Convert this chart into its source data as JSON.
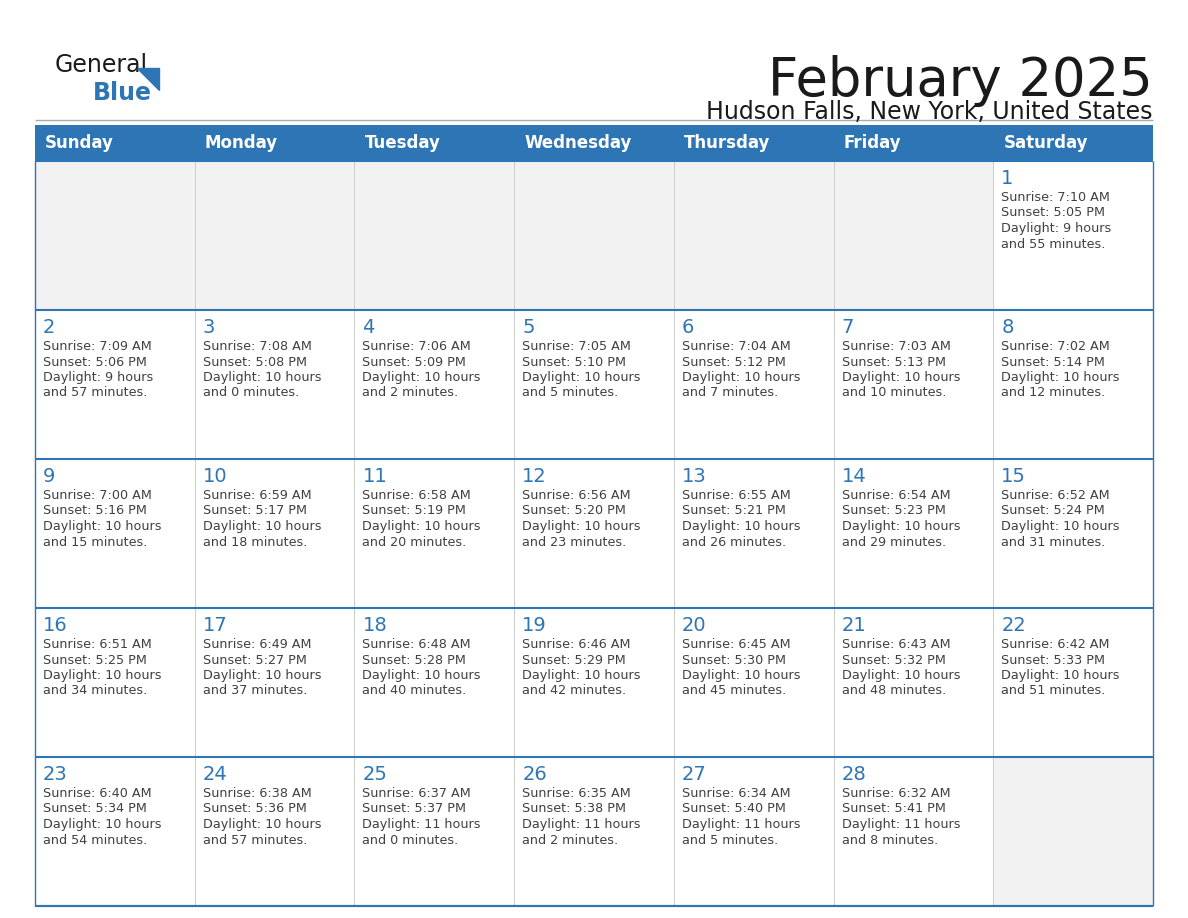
{
  "title": "February 2025",
  "subtitle": "Hudson Falls, New York, United States",
  "header_bg": "#2E75B6",
  "header_text_color": "#FFFFFF",
  "cell_bg_empty": "#F2F2F2",
  "cell_bg_filled": "#FFFFFF",
  "cell_border_color": "#2E75B6",
  "day_number_color": "#2E75B6",
  "detail_text_color": "#404040",
  "days_of_week": [
    "Sunday",
    "Monday",
    "Tuesday",
    "Wednesday",
    "Thursday",
    "Friday",
    "Saturday"
  ],
  "weeks": [
    [
      {
        "day": null,
        "sunrise": null,
        "sunset": null,
        "daylight": null
      },
      {
        "day": null,
        "sunrise": null,
        "sunset": null,
        "daylight": null
      },
      {
        "day": null,
        "sunrise": null,
        "sunset": null,
        "daylight": null
      },
      {
        "day": null,
        "sunrise": null,
        "sunset": null,
        "daylight": null
      },
      {
        "day": null,
        "sunrise": null,
        "sunset": null,
        "daylight": null
      },
      {
        "day": null,
        "sunrise": null,
        "sunset": null,
        "daylight": null
      },
      {
        "day": 1,
        "sunrise": "7:10 AM",
        "sunset": "5:05 PM",
        "daylight": "9 hours\nand 55 minutes."
      }
    ],
    [
      {
        "day": 2,
        "sunrise": "7:09 AM",
        "sunset": "5:06 PM",
        "daylight": "9 hours\nand 57 minutes."
      },
      {
        "day": 3,
        "sunrise": "7:08 AM",
        "sunset": "5:08 PM",
        "daylight": "10 hours\nand 0 minutes."
      },
      {
        "day": 4,
        "sunrise": "7:06 AM",
        "sunset": "5:09 PM",
        "daylight": "10 hours\nand 2 minutes."
      },
      {
        "day": 5,
        "sunrise": "7:05 AM",
        "sunset": "5:10 PM",
        "daylight": "10 hours\nand 5 minutes."
      },
      {
        "day": 6,
        "sunrise": "7:04 AM",
        "sunset": "5:12 PM",
        "daylight": "10 hours\nand 7 minutes."
      },
      {
        "day": 7,
        "sunrise": "7:03 AM",
        "sunset": "5:13 PM",
        "daylight": "10 hours\nand 10 minutes."
      },
      {
        "day": 8,
        "sunrise": "7:02 AM",
        "sunset": "5:14 PM",
        "daylight": "10 hours\nand 12 minutes."
      }
    ],
    [
      {
        "day": 9,
        "sunrise": "7:00 AM",
        "sunset": "5:16 PM",
        "daylight": "10 hours\nand 15 minutes."
      },
      {
        "day": 10,
        "sunrise": "6:59 AM",
        "sunset": "5:17 PM",
        "daylight": "10 hours\nand 18 minutes."
      },
      {
        "day": 11,
        "sunrise": "6:58 AM",
        "sunset": "5:19 PM",
        "daylight": "10 hours\nand 20 minutes."
      },
      {
        "day": 12,
        "sunrise": "6:56 AM",
        "sunset": "5:20 PM",
        "daylight": "10 hours\nand 23 minutes."
      },
      {
        "day": 13,
        "sunrise": "6:55 AM",
        "sunset": "5:21 PM",
        "daylight": "10 hours\nand 26 minutes."
      },
      {
        "day": 14,
        "sunrise": "6:54 AM",
        "sunset": "5:23 PM",
        "daylight": "10 hours\nand 29 minutes."
      },
      {
        "day": 15,
        "sunrise": "6:52 AM",
        "sunset": "5:24 PM",
        "daylight": "10 hours\nand 31 minutes."
      }
    ],
    [
      {
        "day": 16,
        "sunrise": "6:51 AM",
        "sunset": "5:25 PM",
        "daylight": "10 hours\nand 34 minutes."
      },
      {
        "day": 17,
        "sunrise": "6:49 AM",
        "sunset": "5:27 PM",
        "daylight": "10 hours\nand 37 minutes."
      },
      {
        "day": 18,
        "sunrise": "6:48 AM",
        "sunset": "5:28 PM",
        "daylight": "10 hours\nand 40 minutes."
      },
      {
        "day": 19,
        "sunrise": "6:46 AM",
        "sunset": "5:29 PM",
        "daylight": "10 hours\nand 42 minutes."
      },
      {
        "day": 20,
        "sunrise": "6:45 AM",
        "sunset": "5:30 PM",
        "daylight": "10 hours\nand 45 minutes."
      },
      {
        "day": 21,
        "sunrise": "6:43 AM",
        "sunset": "5:32 PM",
        "daylight": "10 hours\nand 48 minutes."
      },
      {
        "day": 22,
        "sunrise": "6:42 AM",
        "sunset": "5:33 PM",
        "daylight": "10 hours\nand 51 minutes."
      }
    ],
    [
      {
        "day": 23,
        "sunrise": "6:40 AM",
        "sunset": "5:34 PM",
        "daylight": "10 hours\nand 54 minutes."
      },
      {
        "day": 24,
        "sunrise": "6:38 AM",
        "sunset": "5:36 PM",
        "daylight": "10 hours\nand 57 minutes."
      },
      {
        "day": 25,
        "sunrise": "6:37 AM",
        "sunset": "5:37 PM",
        "daylight": "11 hours\nand 0 minutes."
      },
      {
        "day": 26,
        "sunrise": "6:35 AM",
        "sunset": "5:38 PM",
        "daylight": "11 hours\nand 2 minutes."
      },
      {
        "day": 27,
        "sunrise": "6:34 AM",
        "sunset": "5:40 PM",
        "daylight": "11 hours\nand 5 minutes."
      },
      {
        "day": 28,
        "sunrise": "6:32 AM",
        "sunset": "5:41 PM",
        "daylight": "11 hours\nand 8 minutes."
      },
      {
        "day": null,
        "sunrise": null,
        "sunset": null,
        "daylight": null
      }
    ]
  ],
  "logo_text_general": "General",
  "logo_text_blue": "Blue",
  "logo_triangle_color": "#2E75B6",
  "logo_general_color": "#1a1a1a",
  "logo_blue_color": "#2E75B6",
  "title_fontsize": 38,
  "subtitle_fontsize": 17,
  "header_fontsize": 12,
  "day_number_fontsize": 14,
  "detail_fontsize": 9.2,
  "background_color": "#FFFFFF",
  "separator_color": "#AAAAAA"
}
